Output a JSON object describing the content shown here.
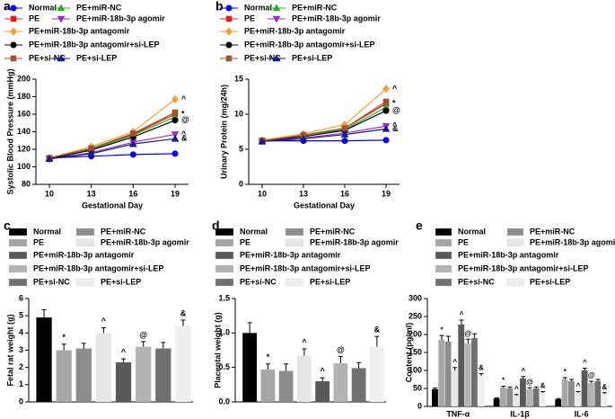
{
  "chart_data": [
    {
      "label": "a",
      "type": "line",
      "ylabel": "Systolic Blood Pressure (mmHg)",
      "xlabel": "Gestational Day",
      "categories": [
        "10",
        "13",
        "16",
        "19"
      ],
      "ylim": [
        80,
        200
      ],
      "yticks": [
        80,
        100,
        120,
        140,
        160,
        180,
        200
      ],
      "series": [
        {
          "name": "Normal",
          "color": "#0000ff",
          "marker": "circle",
          "values": [
            110,
            112,
            114,
            115
          ]
        },
        {
          "name": "PE",
          "color": "#e41a1c",
          "marker": "square",
          "values": [
            110,
            121,
            137,
            160
          ],
          "annotation": "*"
        },
        {
          "name": "PE+miR-NC",
          "color": "#22b422",
          "marker": "triangle",
          "values": [
            110,
            120,
            136,
            157
          ]
        },
        {
          "name": "PE+miR-18b-3p agomir",
          "color": "#9b30d0",
          "marker": "triangle-down",
          "values": [
            109,
            116,
            128,
            137
          ],
          "annotation": "^"
        },
        {
          "name": "PE+miR-18b-3p antagomir",
          "color": "#f5a030",
          "marker": "diamond",
          "values": [
            110,
            123,
            140,
            177
          ],
          "annotation": "^"
        },
        {
          "name": "PE+miR-18b-3p antagomir+si-LEP",
          "color": "#000000",
          "marker": "circle",
          "values": [
            109,
            119,
            134,
            153
          ],
          "annotation": "@"
        },
        {
          "name": "PE+si-NC",
          "color": "#a0522d",
          "marker": "square",
          "values": [
            110,
            121,
            138,
            162
          ]
        },
        {
          "name": "PE+si-LEP",
          "color": "#1a1a8c",
          "marker": "triangle",
          "values": [
            109,
            115,
            126,
            132
          ],
          "annotation": "&"
        }
      ]
    },
    {
      "label": "b",
      "type": "line",
      "ylabel": "Urinary Protein (mg/24h)",
      "xlabel": "Gestational Day",
      "categories": [
        "10",
        "13",
        "16",
        "19"
      ],
      "ylim": [
        0,
        15
      ],
      "yticks": [
        0,
        5,
        10,
        15
      ],
      "series": [
        {
          "name": "Normal",
          "color": "#0000ff",
          "marker": "circle",
          "values": [
            6.2,
            6.2,
            6.2,
            6.3
          ]
        },
        {
          "name": "PE",
          "color": "#e41a1c",
          "marker": "square",
          "values": [
            6.2,
            7.0,
            8.0,
            11.5
          ],
          "annotation": "*"
        },
        {
          "name": "PE+miR-NC",
          "color": "#22b422",
          "marker": "triangle",
          "values": [
            6.2,
            7.0,
            7.8,
            11.0
          ]
        },
        {
          "name": "PE+miR-18b-3p agomir",
          "color": "#9b30d0",
          "marker": "triangle-down",
          "values": [
            6.2,
            6.6,
            7.3,
            8.3
          ],
          "annotation": "^"
        },
        {
          "name": "PE+miR-18b-3p antagomir",
          "color": "#f5a030",
          "marker": "diamond",
          "values": [
            6.3,
            7.2,
            8.5,
            13.6
          ],
          "annotation": "^"
        },
        {
          "name": "PE+miR-18b-3p antagomir+si-LEP",
          "color": "#000000",
          "marker": "circle",
          "values": [
            6.2,
            6.8,
            7.7,
            10.5
          ],
          "annotation": "@"
        },
        {
          "name": "PE+si-NC",
          "color": "#a0522d",
          "marker": "square",
          "values": [
            6.2,
            7.0,
            8.0,
            11.8
          ]
        },
        {
          "name": "PE+si-LEP",
          "color": "#1a1a8c",
          "marker": "triangle",
          "values": [
            6.1,
            6.5,
            7.1,
            7.9
          ],
          "annotation": "&"
        }
      ]
    },
    {
      "label": "c",
      "type": "bar",
      "ylabel": "Fetal rat weight (g)",
      "categories": [
        "Normal",
        "PE",
        "PE+miR-NC",
        "PE+miR-18b-3p agomir",
        "PE+miR-18b-3p antagomir",
        "PE+miR-18b-3p antagomir+si-LEP",
        "PE+si-NC",
        "PE+si-LEP"
      ],
      "colors": [
        "#000000",
        "#a6a6a6",
        "#8c8c8c",
        "#e6e6e6",
        "#595959",
        "#b3b3b3",
        "#707070",
        "#efefef"
      ],
      "values": [
        4.9,
        3.0,
        3.1,
        4.0,
        2.3,
        3.2,
        3.1,
        4.4
      ],
      "errors": [
        0.45,
        0.35,
        0.3,
        0.3,
        0.2,
        0.3,
        0.35,
        0.35
      ],
      "annotations": [
        null,
        "*",
        null,
        "^",
        "^",
        "@",
        null,
        "&"
      ],
      "ylim": [
        0,
        6
      ],
      "yticks": [
        0,
        1,
        2,
        3,
        4,
        5,
        6
      ]
    },
    {
      "label": "d",
      "type": "bar",
      "ylabel": "Placental weight (g)",
      "categories": [
        "Normal",
        "PE",
        "PE+miR-NC",
        "PE+miR-18b-3p agomir",
        "PE+miR-18b-3p antagomir",
        "PE+miR-18b-3p antagomir+si-LEP",
        "PE+si-NC",
        "PE+si-LEP"
      ],
      "colors": [
        "#000000",
        "#a6a6a6",
        "#8c8c8c",
        "#e6e6e6",
        "#595959",
        "#b3b3b3",
        "#707070",
        "#efefef"
      ],
      "values": [
        1.0,
        0.47,
        0.45,
        0.67,
        0.3,
        0.56,
        0.49,
        0.8
      ],
      "errors": [
        0.15,
        0.08,
        0.1,
        0.1,
        0.05,
        0.1,
        0.08,
        0.15
      ],
      "annotations": [
        null,
        "*",
        null,
        "^",
        "^",
        "@",
        null,
        "&"
      ],
      "ylim": [
        0,
        1.5
      ],
      "yticks": [
        {
          "value": 0,
          "label": "0.0"
        },
        0.5,
        {
          "value": 1,
          "label": "1.0"
        },
        1.5
      ]
    },
    {
      "label": "e",
      "type": "grouped-bar",
      "ylabel": "Content (pg/ml)",
      "categories": [
        "TNF-α",
        "IL-1β",
        "IL-6"
      ],
      "ylim": [
        0,
        300
      ],
      "yticks": [
        0,
        50,
        100,
        150,
        200,
        250,
        300
      ],
      "series": [
        {
          "name": "Normal",
          "color": "#000000",
          "values": [
            48,
            22,
            20
          ],
          "errors": [
            3,
            2,
            2
          ]
        },
        {
          "name": "PE",
          "color": "#a6a6a6",
          "values": [
            185,
            52,
            75
          ],
          "errors": [
            12,
            4,
            5
          ],
          "annotation": "*"
        },
        {
          "name": "PE+miR-NC",
          "color": "#8c8c8c",
          "values": [
            180,
            50,
            70
          ],
          "errors": [
            15,
            4,
            5
          ]
        },
        {
          "name": "PE+miR-18b-3p agomir",
          "color": "#e6e6e6",
          "values": [
            100,
            30,
            38
          ],
          "errors": [
            8,
            3,
            3
          ],
          "annotation": "^"
        },
        {
          "name": "PE+miR-18b-3p antagomir",
          "color": "#595959",
          "values": [
            228,
            78,
            100
          ],
          "errors": [
            12,
            5,
            6
          ],
          "annotation": "^"
        },
        {
          "name": "PE+miR-18b-3p antagomir+si-LEP",
          "color": "#b3b3b3",
          "values": [
            175,
            48,
            65
          ],
          "errors": [
            12,
            4,
            5
          ],
          "annotation": "@"
        },
        {
          "name": "PE+si-NC",
          "color": "#707070",
          "values": [
            190,
            50,
            70
          ],
          "errors": [
            12,
            4,
            5
          ]
        },
        {
          "name": "PE+si-LEP",
          "color": "#efefef",
          "values": [
            85,
            38,
            35
          ],
          "errors": [
            6,
            3,
            3
          ],
          "annotation": "&"
        }
      ]
    }
  ]
}
